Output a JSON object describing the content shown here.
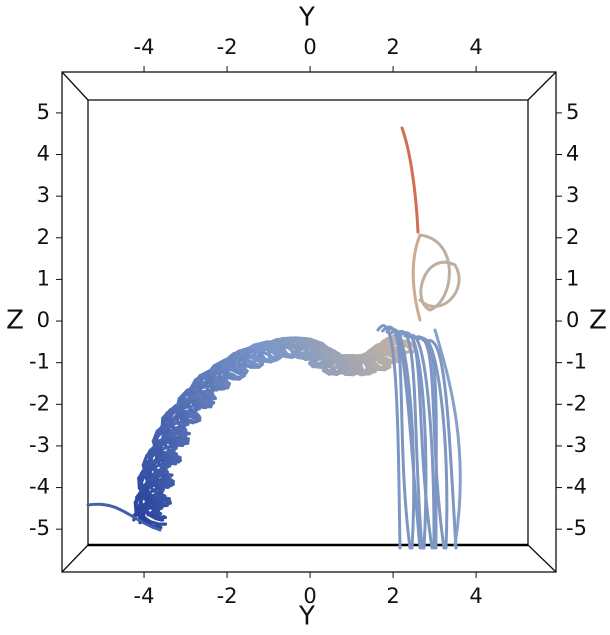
{
  "chart_data": {
    "type": "streamlines",
    "x_label": "Y",
    "y_label": "Z",
    "xlim": [
      -5.35,
      5.25
    ],
    "xticks": [
      -4,
      -2,
      0,
      2,
      4
    ],
    "ylim": [
      -5.38,
      5.31
    ],
    "yticks": [
      -5,
      -4,
      -3,
      -2,
      -1,
      0,
      1,
      2,
      3,
      4,
      5
    ]
  }
}
